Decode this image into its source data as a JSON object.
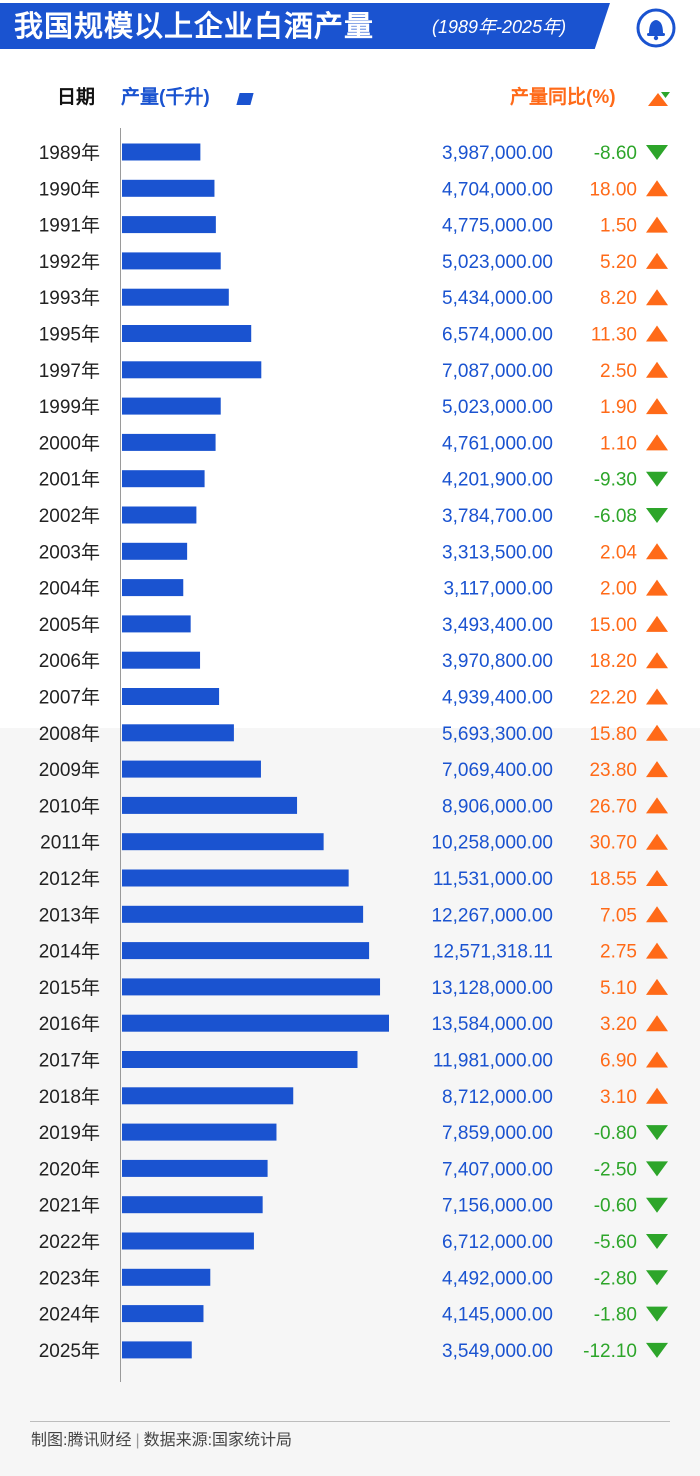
{
  "header": {
    "title": "我国规模以上企业白酒产量",
    "subtitle": "(1989年-2025年)"
  },
  "columns": {
    "date": "日期",
    "production": "产量(千升)",
    "yoy": "产量同比(%)"
  },
  "colors": {
    "bar": "#1a53d0",
    "up": "#ff6a18",
    "down": "#2da52a"
  },
  "chart_data": {
    "type": "bar",
    "orientation": "horizontal",
    "categories": [
      "1989年",
      "1990年",
      "1991年",
      "1992年",
      "1993年",
      "1995年",
      "1997年",
      "1999年",
      "2000年",
      "2001年",
      "2002年",
      "2003年",
      "2004年",
      "2005年",
      "2006年",
      "2007年",
      "2008年",
      "2009年",
      "2010年",
      "2011年",
      "2012年",
      "2013年",
      "2014年",
      "2015年",
      "2016年",
      "2017年",
      "2018年",
      "2019年",
      "2020年",
      "2021年",
      "2022年",
      "2023年",
      "2024年",
      "2025年"
    ],
    "values": [
      3987000,
      4704000,
      4775000,
      5023000,
      5434000,
      6574000,
      7087000,
      5023000,
      4761000,
      4201900,
      3784700,
      3313500,
      3117000,
      3493400,
      3970800,
      4939400,
      5693300,
      7069400,
      8906000,
      10258000,
      11531000,
      12267000,
      12571318.11,
      13128000,
      13584000,
      11981000,
      8712000,
      7859000,
      7407000,
      7156000,
      6712000,
      4492000,
      4145000,
      3549000
    ],
    "value_labels": [
      "3,987,000.00",
      "4,704,000.00",
      "4,775,000.00",
      "5,023,000.00",
      "5,434,000.00",
      "6,574,000.00",
      "7,087,000.00",
      "5,023,000.00",
      "4,761,000.00",
      "4,201,900.00",
      "3,784,700.00",
      "3,313,500.00",
      "3,117,000.00",
      "3,493,400.00",
      "3,970,800.00",
      "4,939,400.00",
      "5,693,300.00",
      "7,069,400.00",
      "8,906,000.00",
      "10,258,000.00",
      "11,531,000.00",
      "12,267,000.00",
      "12,571,318.11",
      "13,128,000.00",
      "13,584,000.00",
      "11,981,000.00",
      "8,712,000.00",
      "7,859,000.00",
      "7,407,000.00",
      "7,156,000.00",
      "6,712,000.00",
      "4,492,000.00",
      "4,145,000.00",
      "3,549,000.00"
    ],
    "yoy": [
      -8.6,
      18.0,
      1.5,
      5.2,
      8.2,
      11.3,
      2.5,
      1.9,
      1.1,
      -9.3,
      -6.08,
      2.04,
      2.0,
      15.0,
      18.2,
      22.2,
      15.8,
      23.8,
      26.7,
      30.7,
      18.55,
      7.05,
      2.75,
      5.1,
      3.2,
      6.9,
      3.1,
      -0.8,
      -2.5,
      -0.6,
      -5.6,
      -2.8,
      -1.8,
      -12.1
    ],
    "yoy_labels": [
      "-8.60",
      "18.00",
      "1.50",
      "5.20",
      "8.20",
      "11.30",
      "2.50",
      "1.90",
      "1.10",
      "-9.30",
      "-6.08",
      "2.04",
      "2.00",
      "15.00",
      "18.20",
      "22.20",
      "15.80",
      "23.80",
      "26.70",
      "30.70",
      "18.55",
      "7.05",
      "2.75",
      "5.10",
      "3.20",
      "6.90",
      "3.10",
      "-0.80",
      "-2.50",
      "-0.60",
      "-5.60",
      "-2.80",
      "-1.80",
      "-12.10"
    ],
    "xlim": [
      0,
      13584000
    ]
  },
  "footer": {
    "maker": "制图:腾讯财经",
    "source": "数据来源:国家统计局"
  }
}
